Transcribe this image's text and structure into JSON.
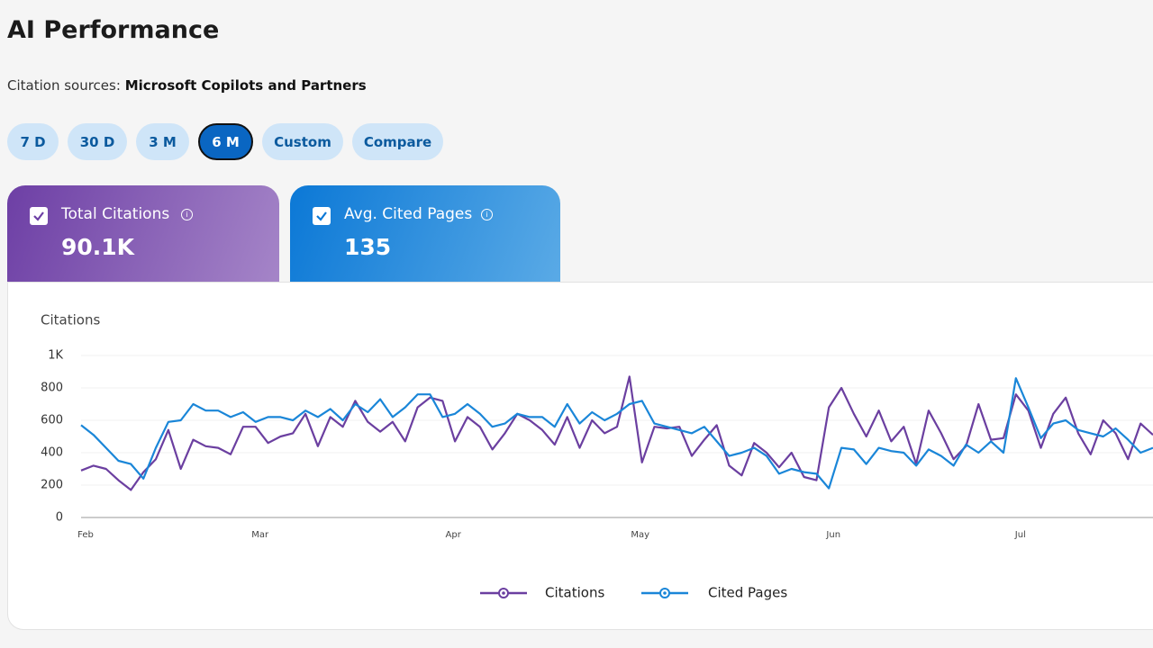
{
  "header": {
    "title": "AI Performance"
  },
  "citation_sources": {
    "label": "Citation sources:",
    "value": "Microsoft Copilots and Partners"
  },
  "range_buttons": [
    "7 D",
    "30 D",
    "3 M",
    "6 M",
    "Custom",
    "Compare"
  ],
  "active_button": 3,
  "cards": [
    {
      "label": "Total Citations",
      "value": "90.1K"
    },
    {
      "label": "Avg. Cited Pages",
      "value": "135"
    }
  ],
  "chart_data": {
    "type": "line",
    "y_label": "Citations",
    "x": [
      0,
      2,
      4,
      6,
      8,
      10,
      12,
      14,
      16,
      18,
      20,
      22,
      24,
      26,
      28,
      30,
      32,
      34,
      36,
      38,
      40,
      42,
      44,
      46,
      48,
      50,
      52,
      54,
      56,
      58,
      60,
      62,
      64,
      66,
      68,
      70,
      72,
      74,
      76,
      78,
      80,
      82,
      84,
      86,
      88,
      90,
      92,
      94,
      96,
      98,
      100,
      102,
      104,
      106,
      108,
      110,
      112,
      114,
      116,
      118,
      120,
      122,
      124,
      126,
      128,
      130,
      132,
      134,
      136,
      138,
      140,
      142,
      144,
      146,
      148,
      150,
      152,
      154,
      156,
      158,
      160,
      162,
      164,
      166,
      168,
      170,
      172
    ],
    "xlim": [
      0,
      172
    ],
    "xticks": [
      {
        "value": 0,
        "label": "Feb"
      },
      {
        "value": 28,
        "label": "Mar"
      },
      {
        "value": 59,
        "label": "Apr"
      },
      {
        "value": 89,
        "label": "May"
      },
      {
        "value": 120,
        "label": "Jun"
      },
      {
        "value": 150,
        "label": "Jul"
      }
    ],
    "ylim": [
      0,
      1000
    ],
    "yticks": [
      0,
      200,
      400,
      600,
      800,
      {
        "value": 1000,
        "label": "1K"
      }
    ],
    "grid": true,
    "series": [
      {
        "name": "Citations",
        "color": "#6b3fa0",
        "values": [
          290,
          320,
          300,
          230,
          170,
          280,
          360,
          540,
          300,
          480,
          440,
          430,
          390,
          560,
          560,
          460,
          500,
          520,
          640,
          440,
          620,
          560,
          720,
          590,
          530,
          590,
          470,
          680,
          740,
          720,
          470,
          620,
          560,
          420,
          520,
          640,
          600,
          540,
          450,
          620,
          430,
          600,
          520,
          560,
          870,
          340,
          560,
          550,
          560,
          380,
          480,
          570,
          320,
          260,
          460,
          400,
          310,
          400,
          250,
          230,
          680,
          800,
          640,
          500,
          660,
          470,
          560,
          330,
          660,
          520,
          360,
          440,
          700,
          480,
          490,
          760,
          660,
          430,
          640,
          740,
          520,
          390,
          600,
          520,
          360,
          580,
          510
        ]
      },
      {
        "name": "Cited Pages",
        "color": "#1a86d8",
        "values": [
          570,
          510,
          430,
          350,
          330,
          240,
          430,
          590,
          600,
          700,
          660,
          660,
          620,
          650,
          590,
          620,
          620,
          600,
          660,
          620,
          670,
          600,
          700,
          650,
          730,
          620,
          680,
          760,
          760,
          620,
          640,
          700,
          640,
          560,
          580,
          640,
          620,
          620,
          560,
          700,
          580,
          650,
          600,
          640,
          700,
          720,
          580,
          560,
          540,
          520,
          560,
          470,
          380,
          400,
          430,
          380,
          270,
          300,
          280,
          270,
          180,
          430,
          420,
          330,
          430,
          410,
          400,
          320,
          420,
          380,
          320,
          450,
          400,
          470,
          400,
          860,
          680,
          490,
          580,
          600,
          540,
          520,
          500,
          550,
          480,
          400,
          430
        ]
      }
    ]
  }
}
